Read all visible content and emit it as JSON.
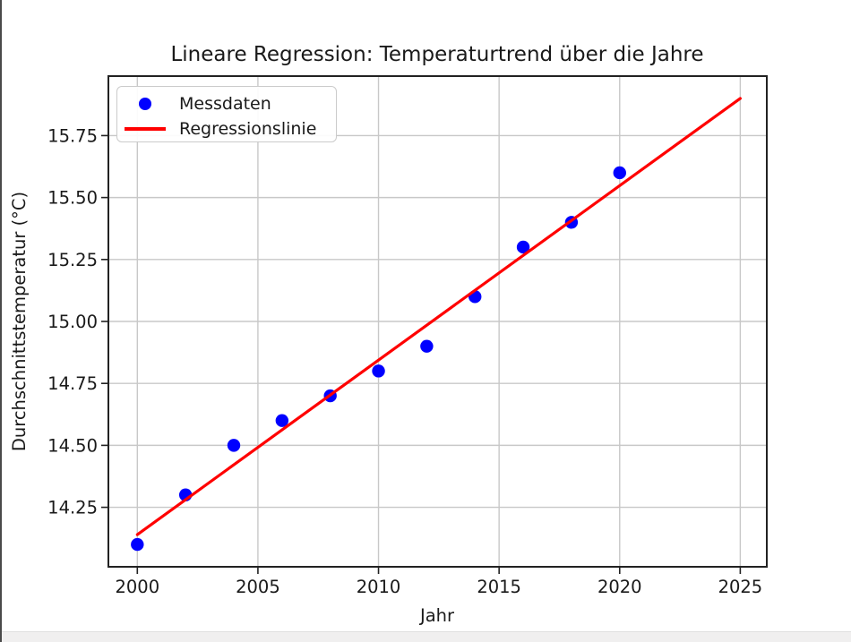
{
  "chart_data": {
    "type": "scatter",
    "title": "Lineare Regression: Temperaturtrend über die Jahre",
    "xlabel": "Jahr",
    "ylabel": "Durchschnittstemperatur (°C)",
    "xlim": [
      1998.8,
      2026.1
    ],
    "ylim": [
      14.01,
      15.99
    ],
    "xticks": [
      2000,
      2005,
      2010,
      2015,
      2020,
      2025
    ],
    "xtick_labels": [
      "2000",
      "2005",
      "2010",
      "2015",
      "2020",
      "2025"
    ],
    "yticks": [
      14.25,
      14.5,
      14.75,
      15.0,
      15.25,
      15.5,
      15.75
    ],
    "ytick_labels": [
      "14.25",
      "14.50",
      "14.75",
      "15.00",
      "15.25",
      "15.50",
      "15.75"
    ],
    "grid": true,
    "legend_position": "upper left",
    "series": [
      {
        "name": "Messdaten",
        "type": "scatter",
        "color": "#0000ff",
        "x": [
          2000,
          2002,
          2004,
          2006,
          2008,
          2010,
          2012,
          2014,
          2016,
          2018,
          2020
        ],
        "y": [
          14.1,
          14.3,
          14.5,
          14.6,
          14.7,
          14.8,
          14.9,
          15.1,
          15.3,
          15.4,
          15.6
        ]
      },
      {
        "name": "Regressionslinie",
        "type": "line",
        "color": "#ff0000",
        "x": [
          2000,
          2025
        ],
        "y": [
          14.14,
          15.9
        ]
      }
    ],
    "legend": {
      "entries": [
        {
          "label": "Messdaten",
          "type": "marker",
          "color": "#0000ff"
        },
        {
          "label": "Regressionslinie",
          "type": "line",
          "color": "#ff0000"
        }
      ]
    },
    "colors": {
      "scatter": "#0000ff",
      "line": "#ff0000",
      "grid": "#c8c8c8",
      "spine": "#222222",
      "text": "#1a1a1a"
    }
  },
  "window": {
    "left_border_color": "#4a4a4a",
    "bottom_bar_color": "#f0efef"
  }
}
